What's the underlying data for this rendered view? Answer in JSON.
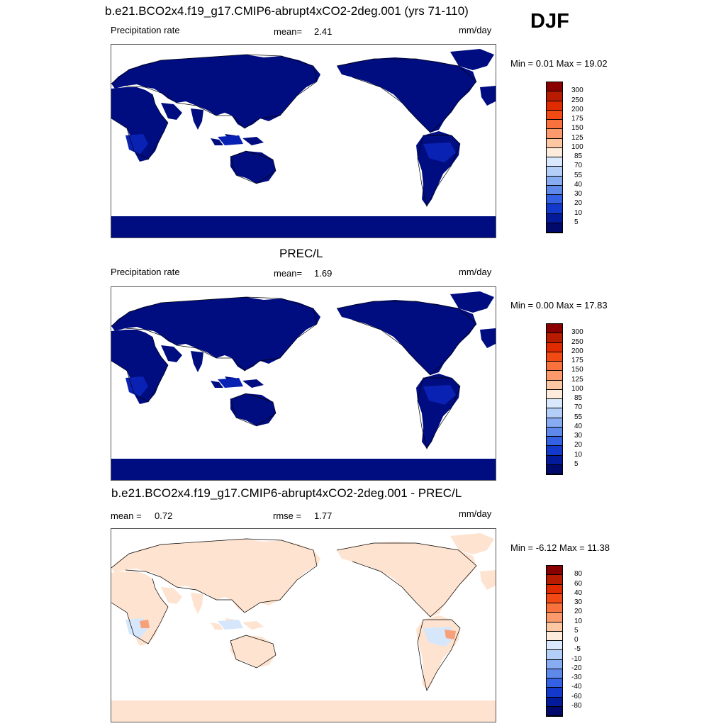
{
  "header": {
    "title": "b.e21.BCO2x4.f19_g17.CMIP6-abrupt4xCO2-2deg.001 (yrs 71-110)",
    "season": "DJF"
  },
  "colors": {
    "ocean": "#ffffff",
    "land_dry": "#000d80",
    "land_wet": "#0a22b4",
    "diff_pos": "#fde3d0",
    "diff_neg": "#d6e6fb",
    "diff_strong_pos": "#f8a07a"
  },
  "panels": [
    {
      "left_label": "Precipitation rate",
      "stat_label": "mean=",
      "stat_value": "2.41",
      "units": "mm/day",
      "minmax": "Min =   0.01 Max =  19.02",
      "colorbar": [
        "300",
        "250",
        "200",
        "175",
        "150",
        "125",
        "100",
        "85",
        "70",
        "55",
        "40",
        "30",
        "20",
        "10",
        "5"
      ]
    },
    {
      "title": "PREC/L",
      "left_label": "Precipitation rate",
      "stat_label": "mean=",
      "stat_value": "1.69",
      "units": "mm/day",
      "minmax": "Min =   0.00 Max =  17.83",
      "colorbar": [
        "300",
        "250",
        "200",
        "175",
        "150",
        "125",
        "100",
        "85",
        "70",
        "55",
        "40",
        "30",
        "20",
        "10",
        "5"
      ]
    },
    {
      "title": "b.e21.BCO2x4.f19_g17.CMIP6-abrupt4xCO2-2deg.001 - PREC/L",
      "left_label": "mean =",
      "left_value": "0.72",
      "stat_label": "rmse =",
      "stat_value": "1.77",
      "units": "mm/day",
      "minmax": "Min =  -6.12 Max =  11.38",
      "colorbar": [
        "80",
        "60",
        "40",
        "30",
        "20",
        "10",
        "5",
        "0",
        "-5",
        "-10",
        "-20",
        "-30",
        "-40",
        "-60",
        "-80"
      ]
    }
  ]
}
